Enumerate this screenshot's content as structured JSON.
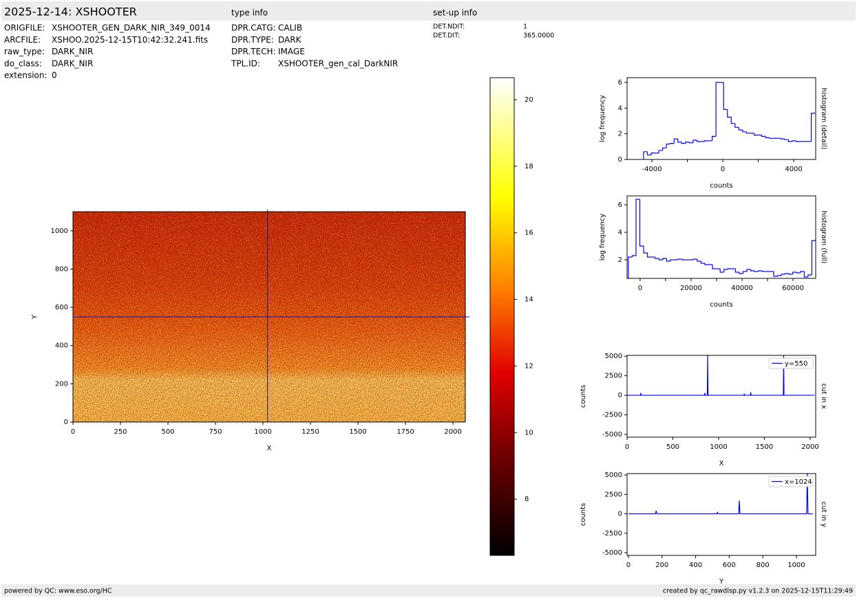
{
  "header": {
    "title": "2025-12-14: XSHOOTER",
    "type_heading": "type info",
    "setup_heading": "set-up info"
  },
  "file_info": [
    [
      "ORIGFILE:",
      "XSHOOTER_GEN_DARK_NIR_349_0014"
    ],
    [
      "ARCFILE:",
      "XSHOO.2025-12-15T10:42:32.241.fits"
    ],
    [
      "raw_type:",
      "DARK_NIR"
    ],
    [
      "do_class:",
      "DARK_NIR"
    ],
    [
      "extension:",
      "0"
    ]
  ],
  "type_info": [
    [
      "DPR.CATG:",
      "CALIB"
    ],
    [
      "DPR.TYPE:",
      "DARK"
    ],
    [
      "DPR.TECH:",
      "IMAGE"
    ],
    [
      "TPL.ID:",
      "XSHOOTER_gen_cal_DarkNIR"
    ]
  ],
  "setup_info": [
    [
      "DET.NDIT:",
      "1"
    ],
    [
      "DET.DIT:",
      "365.0000"
    ]
  ],
  "chart_data": [
    {
      "type": "image",
      "xlabel": "X",
      "ylabel": "Y",
      "xlim": [
        0,
        2065
      ],
      "ylim": [
        0,
        1100
      ],
      "xticks": [
        0,
        250,
        500,
        750,
        1000,
        1250,
        1500,
        1750,
        2000
      ],
      "yticks": [
        0,
        200,
        400,
        600,
        800,
        1000
      ],
      "crosshair": {
        "x": 1024,
        "y": 550
      }
    },
    {
      "type": "colorbar",
      "ylim": [
        6.31,
        20.66
      ],
      "yticks": [
        8,
        10,
        12,
        14,
        16,
        18,
        20
      ]
    },
    {
      "type": "histogram",
      "xlabel": "counts",
      "ylabel": "log frequency",
      "side_label": "histogram (detail)",
      "color": "#0000ff",
      "xlim": [
        -5400,
        5240
      ],
      "ylim": [
        0,
        6.37
      ],
      "xticks": [
        -4000,
        0,
        4000
      ],
      "xminorticks": [
        -2000,
        2000
      ],
      "yticks": [
        0,
        2,
        4,
        6
      ],
      "bins": [
        -4470,
        -4255,
        -4040,
        -3825,
        -3610,
        -3395,
        -3180,
        -2965,
        -2750,
        -2535,
        -2320,
        -2105,
        -1890,
        -1675,
        -1460,
        -1245,
        -1030,
        -815,
        -600,
        -385,
        -170,
        45,
        260,
        475,
        690,
        905,
        1120,
        1335,
        1550,
        1765,
        1980,
        2195,
        2410,
        2625,
        2840,
        3055,
        3270,
        3485,
        3700,
        3915,
        4130,
        4345,
        4560,
        4775,
        4990,
        5205
      ],
      "values": [
        0.6,
        0.35,
        0.5,
        0.5,
        0.7,
        0.9,
        1.2,
        1.25,
        1.6,
        1.35,
        1.25,
        1.35,
        1.3,
        1.5,
        1.4,
        1.4,
        1.45,
        1.45,
        1.8,
        6.0,
        6.0,
        3.9,
        3.3,
        2.8,
        2.5,
        2.3,
        2.15,
        2.05,
        2.05,
        1.9,
        1.9,
        1.8,
        1.7,
        1.65,
        1.65,
        1.65,
        1.6,
        1.55,
        1.4,
        1.45,
        1.4,
        1.4,
        1.4,
        1.4,
        3.6
      ]
    },
    {
      "type": "histogram",
      "xlabel": "counts",
      "ylabel": "log frequency",
      "side_label": "histogram (full)",
      "color": "#0000ff",
      "xlim": [
        -5100,
        68900
      ],
      "ylim": [
        0.65,
        6.65
      ],
      "xticks": [
        0,
        20000,
        40000,
        60000
      ],
      "xminorticks": [
        10000,
        30000,
        50000
      ],
      "yticks": [
        2,
        4,
        6
      ],
      "bins": [
        -4600,
        -3100,
        -1600,
        -100,
        1400,
        2900,
        4400,
        5900,
        7400,
        8900,
        10400,
        11900,
        13400,
        14900,
        16400,
        17900,
        19400,
        20900,
        22400,
        23900,
        25400,
        26900,
        28400,
        29900,
        31400,
        32900,
        34400,
        35900,
        37400,
        38900,
        40400,
        41900,
        43400,
        44900,
        46400,
        47900,
        49400,
        50900,
        52400,
        53900,
        55400,
        56900,
        58400,
        59900,
        61400,
        62900,
        64400,
        65900,
        67400,
        68900
      ],
      "values": [
        2.2,
        2.3,
        6.4,
        3.0,
        2.5,
        2.2,
        2.2,
        2.1,
        2.0,
        2.1,
        1.9,
        2.0,
        2.0,
        2.05,
        2.0,
        2.0,
        2.0,
        2.05,
        1.9,
        1.75,
        1.65,
        1.65,
        1.35,
        1.35,
        1.1,
        1.3,
        1.35,
        1.35,
        1.1,
        1.0,
        1.15,
        1.3,
        1.2,
        1.15,
        1.2,
        1.15,
        1.15,
        1.15,
        0.8,
        0.85,
        0.95,
        1.0,
        0.95,
        1.1,
        1.05,
        1.15,
        0.75,
        0.9,
        3.4
      ]
    },
    {
      "type": "line",
      "xlabel": "X",
      "ylabel": "counts",
      "side_label": "cut in x",
      "legend": "upper right",
      "xlim": [
        0,
        2060
      ],
      "ylim": [
        -5350,
        5100
      ],
      "xticks": [
        0,
        500,
        1000,
        1500,
        2000
      ],
      "yticks": [
        -5000,
        -2500,
        0,
        2500,
        5000
      ],
      "x": [
        0,
        146,
        150,
        154,
        846,
        850,
        854,
        876,
        880,
        884,
        1276,
        1280,
        1284,
        1346,
        1350,
        1354,
        1706,
        1710,
        1714,
        2047
      ],
      "series": [
        {
          "name": "y=550",
          "color": "#0000ff",
          "values": [
            0,
            0,
            300,
            0,
            0,
            300,
            0,
            0,
            5100,
            0,
            0,
            200,
            0,
            0,
            400,
            0,
            0,
            5100,
            0,
            0
          ]
        }
      ]
    },
    {
      "type": "line",
      "xlabel": "Y",
      "ylabel": "counts",
      "side_label": "cut in y",
      "legend": "upper right",
      "xlim": [
        -8,
        1115
      ],
      "ylim": [
        -5350,
        5180
      ],
      "xticks": [
        0,
        200,
        400,
        600,
        800,
        1000
      ],
      "yticks": [
        -5000,
        -2500,
        0,
        2500,
        5000
      ],
      "x": [
        0,
        161,
        165,
        169,
        526,
        530,
        534,
        656,
        660,
        664,
        1061,
        1065,
        1069,
        1099
      ],
      "series": [
        {
          "name": "x=1024",
          "color": "#0000ff",
          "values": [
            0,
            0,
            400,
            0,
            0,
            200,
            0,
            0,
            1700,
            0,
            0,
            5200,
            0,
            0
          ]
        }
      ]
    }
  ],
  "footer": {
    "left": "powered by QC: www.eso.org/HC",
    "right": "created by qc_rawdisp.py v1.2.3 on 2025-12-15T11:29:49"
  }
}
